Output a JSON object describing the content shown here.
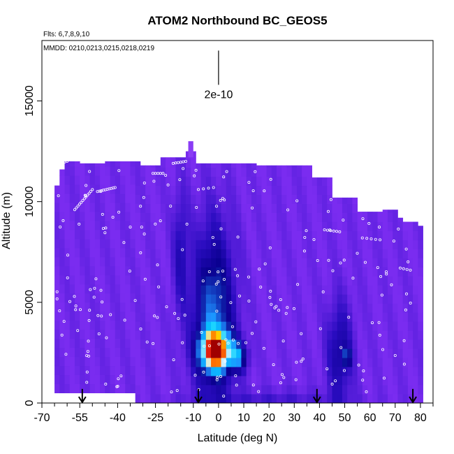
{
  "chart_data": {
    "type": "heatmap",
    "title": "ATOM2 Northbound BC_GEOS5",
    "annotations": {
      "flights": "Flts: 6,7,8,9,10",
      "dates": "MMDD: 0210,0213,0215,0218,0219"
    },
    "xlabel": "Latitude (deg N)",
    "ylabel": "Altitude (m)",
    "xlim": [
      -70,
      85
    ],
    "ylim": [
      0,
      18000
    ],
    "x_ticks": [
      -70,
      -55,
      -40,
      -25,
      -10,
      0,
      10,
      20,
      30,
      40,
      50,
      60,
      70,
      80
    ],
    "x_tick_labels": [
      "-70",
      "-55",
      "-40",
      "-25",
      "-10",
      "0",
      "10",
      "20",
      "30",
      "40",
      "50",
      "60",
      "70",
      "80"
    ],
    "x_minor_ticks": [
      -65,
      -60,
      -50,
      -45,
      -35,
      -30,
      -20,
      -15,
      -5,
      5,
      15,
      25,
      35,
      45,
      55,
      65,
      75,
      85
    ],
    "y_ticks": [
      0,
      5000,
      10000,
      15000
    ],
    "y_tick_labels": [
      "0",
      "5000",
      "10000",
      "15000"
    ],
    "scale_marker": {
      "label": "2e-10",
      "x": 0,
      "y_top": 17500,
      "y_bottom": 15800
    },
    "arrows_x": [
      -54,
      -8,
      39,
      77
    ],
    "colors": {
      "background": "#7a2cf0",
      "low": "#2a0cc0",
      "deep": "#0a0090",
      "mid": "#1e90ff",
      "cyan": "#00d0ff",
      "light": "#d8f0ff",
      "yellow": "#ffd000",
      "orange": "#ff7000",
      "red": "#e01010",
      "dark_red": "#a00000",
      "white": "#ffffff"
    },
    "high_pollution_region": {
      "lat_range": [
        -10,
        12
      ],
      "alt_range": [
        1500,
        4000
      ],
      "peak_lat": -3,
      "peak_alt": 2500
    },
    "secondary_region": {
      "lat_range": [
        42,
        56
      ],
      "alt_range": [
        1500,
        3000
      ],
      "peak_lat": 50,
      "peak_alt": 2300
    }
  }
}
